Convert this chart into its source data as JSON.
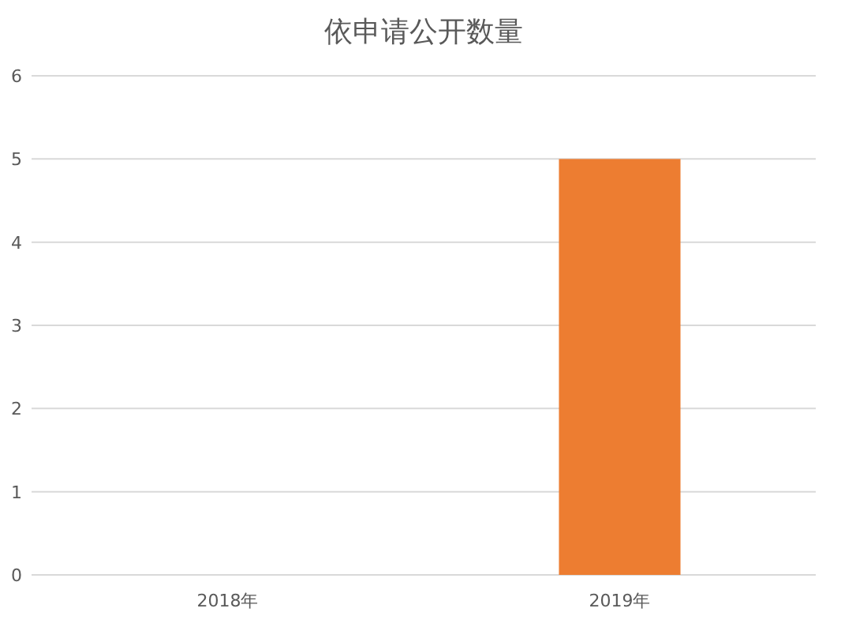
{
  "chart_data": {
    "type": "bar",
    "title": "依申请公开数量",
    "categories": [
      "2018年",
      "2019年"
    ],
    "values": [
      0,
      5
    ],
    "color": "#ed7d31",
    "ylim": [
      0,
      6
    ],
    "yticks": [
      0,
      1,
      2,
      3,
      4,
      5,
      6
    ],
    "grid": "y"
  }
}
